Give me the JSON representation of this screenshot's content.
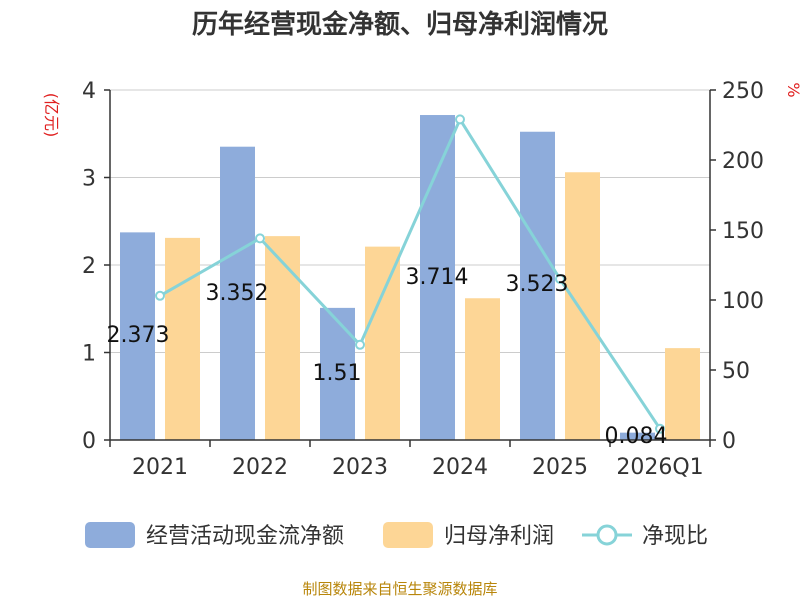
{
  "chart_data": {
    "type": "bar",
    "title": "历年经营现金净额、归母净利润情况",
    "categories": [
      "2021",
      "2022",
      "2023",
      "2024",
      "2025",
      "2026Q1"
    ],
    "series": [
      {
        "name": "经营活动现金流净额",
        "kind": "bar",
        "axis": "left",
        "color": "#8eacdb",
        "values": [
          2.373,
          3.352,
          1.51,
          3.714,
          3.523,
          0.084
        ],
        "labels": [
          "2.373",
          "3.352",
          "1.51",
          "3.714",
          "3.523",
          "0.084"
        ]
      },
      {
        "name": "归母净利润",
        "kind": "bar",
        "axis": "left",
        "color": "#fdd696",
        "values": [
          2.31,
          2.33,
          2.21,
          1.62,
          3.06,
          1.05
        ]
      },
      {
        "name": "净现比",
        "kind": "line",
        "axis": "right",
        "color": "#86d3d8",
        "values": [
          103,
          144,
          68,
          229,
          115,
          8
        ]
      }
    ],
    "y_left": {
      "unit": "(亿元)",
      "ylim": [
        0,
        4
      ],
      "ticks": [
        "0",
        "1",
        "2",
        "3",
        "4"
      ]
    },
    "y_right": {
      "unit": "%",
      "ylim": [
        0,
        250
      ],
      "ticks": [
        "0",
        "50",
        "100",
        "150",
        "200",
        "250"
      ]
    },
    "grid": true,
    "legend_position": "bottom"
  },
  "source": "制图数据来自恒生聚源数据库"
}
